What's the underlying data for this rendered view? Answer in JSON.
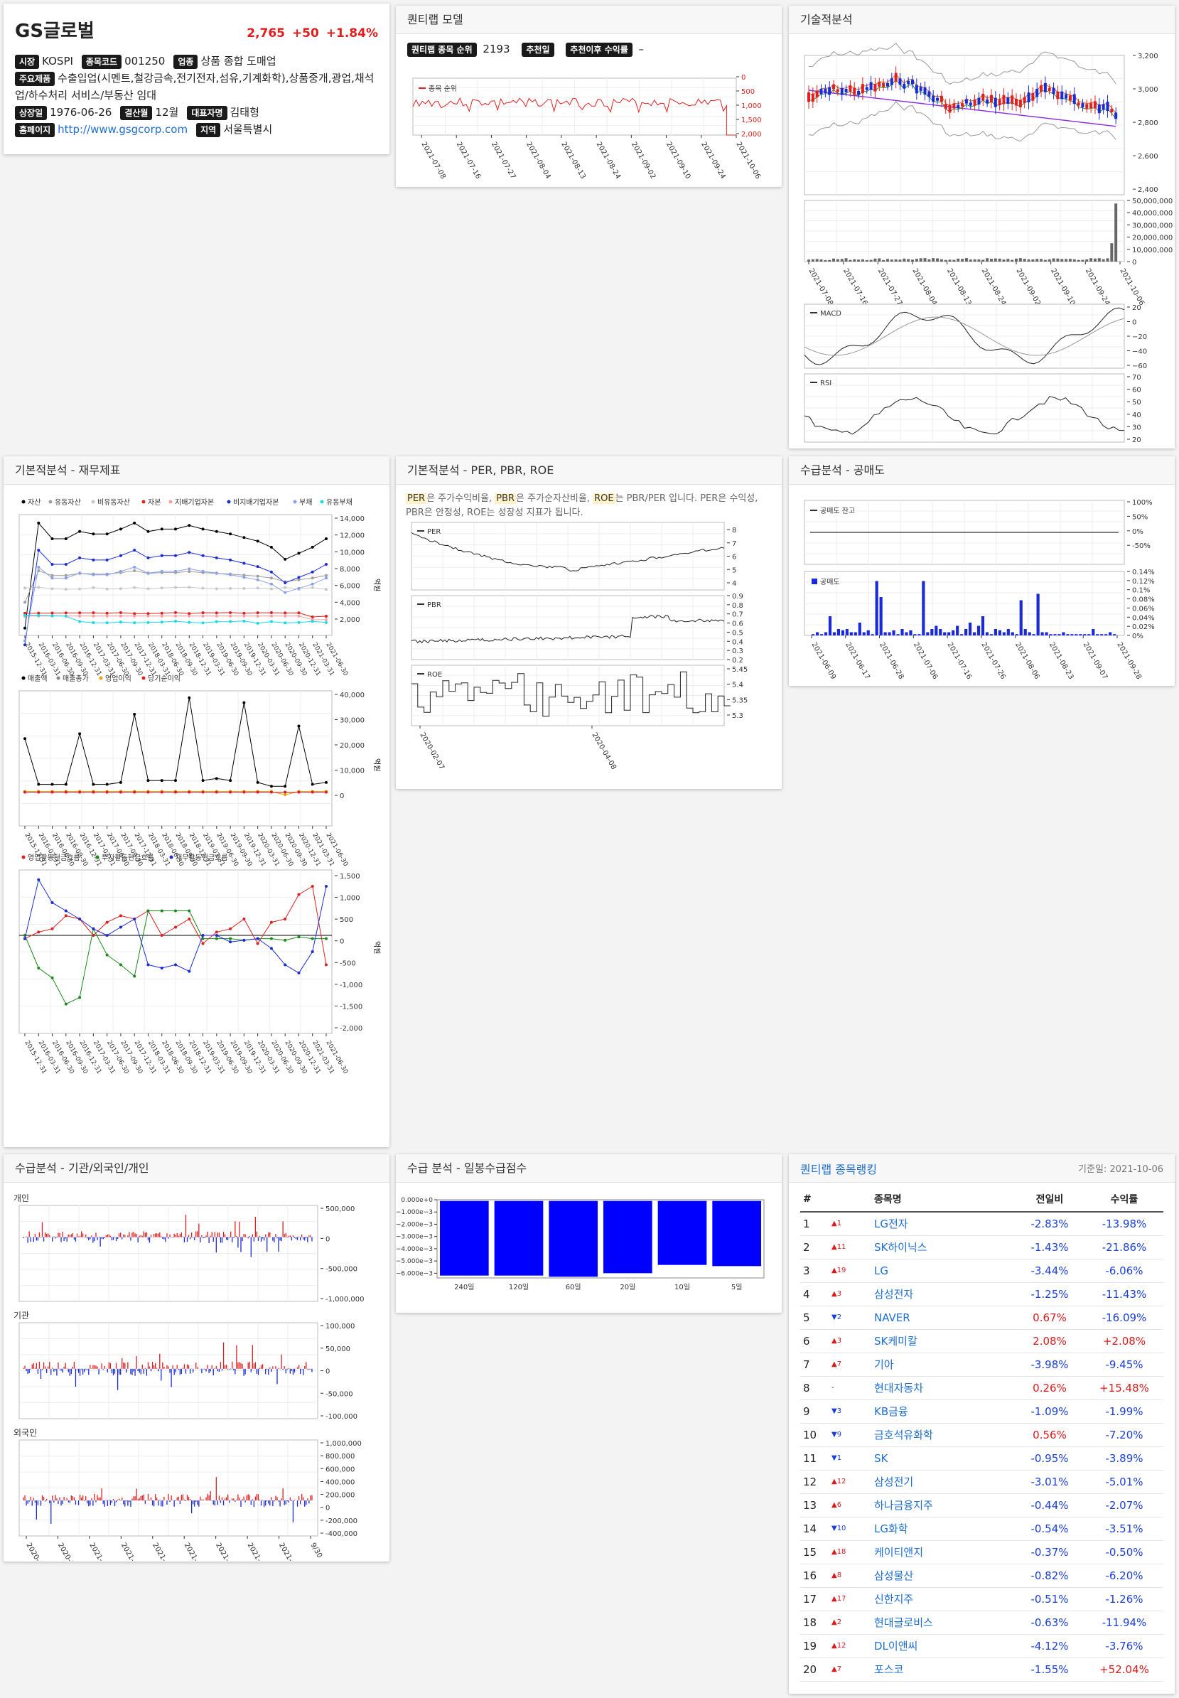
{
  "stock": {
    "name": "GS글로벌",
    "price": "2,765",
    "change": "+50",
    "change_pct": "+1.84%",
    "rows": [
      [
        {
          "label": "시장",
          "value": "KOSPI"
        },
        {
          "label": "종목코드",
          "value": "001250"
        },
        {
          "label": "업종",
          "value": "상품 종합 도매업"
        }
      ],
      [
        {
          "label": "주요제품",
          "value": "수출입업(시멘트,철강금속,전기전자,섬유,기계화학),상품중개,광업,채석업/하수처리 서비스/부동산 임대"
        }
      ],
      [
        {
          "label": "상장일",
          "value": "1976-06-26"
        },
        {
          "label": "결산월",
          "value": "12월"
        },
        {
          "label": "대표자명",
          "value": "김태형"
        }
      ],
      [
        {
          "label": "홈페이지",
          "value": "http://www.gsgcorp.com",
          "link": true
        },
        {
          "label": "지역",
          "value": "서울특별시"
        }
      ]
    ]
  },
  "quantilab": {
    "title": "퀀티랩 모델",
    "rank_label": "퀀티랩 종목 순위",
    "rank_value": "2193",
    "rec_label": "추천일",
    "rec_return_label": "추천이후 수익률",
    "rec_return_value": "–",
    "legend": "종목 순위",
    "yticks": [
      "0",
      "500",
      "1,000",
      "1,500",
      "2,000"
    ],
    "xticks": [
      "2021-07-08",
      "2021-07-16",
      "2021-07-27",
      "2021-08-04",
      "2021-08-13",
      "2021-08-24",
      "2021-09-02",
      "2021-09-10",
      "2021-09-24",
      "2021-10-06"
    ]
  },
  "technical": {
    "title": "기술적분석",
    "price_yticks": [
      "3,200",
      "3,000",
      "2,800",
      "2,600",
      "2,400"
    ],
    "vol_yticks": [
      "50,000,000",
      "40,000,000",
      "30,000,000",
      "20,000,000",
      "10,000,000",
      "0"
    ],
    "xticks": [
      "2021-07-08",
      "2021-07-16",
      "2021-07-27",
      "2021-08-04",
      "2021-08-13",
      "2021-08-24",
      "2021-09-02",
      "2021-09-10",
      "2021-09-24",
      "2021-10-06"
    ],
    "macd_label": "MACD",
    "macd_yticks": [
      "20",
      "0",
      "−20",
      "−40",
      "−60"
    ],
    "rsi_label": "RSI",
    "rsi_yticks": [
      "70",
      "60",
      "50",
      "40",
      "30",
      "20"
    ]
  },
  "fundamental": {
    "title": "기본적분석 - 재무제표",
    "bs_legend": [
      {
        "name": "자산",
        "color": "#000000"
      },
      {
        "name": "유동자산",
        "color": "#9e9e9e"
      },
      {
        "name": "비유동자산",
        "color": "#c8c8c8"
      },
      {
        "name": "자본",
        "color": "#e02020"
      },
      {
        "name": "지배기업자본",
        "color": "#f4a0a0"
      },
      {
        "name": "비지배기업자본",
        "color": "#1a2bd6"
      },
      {
        "name": "부채",
        "color": "#8aa0e8"
      },
      {
        "name": "유동부채",
        "color": "#19d9e6"
      }
    ],
    "bs_yticks": [
      "14,000",
      "12,000",
      "10,000",
      "8,000",
      "6,000",
      "4,000",
      "2,000"
    ],
    "is_legend": [
      {
        "name": "매출액",
        "color": "#000000"
      },
      {
        "name": "매출총가",
        "color": "#888888"
      },
      {
        "name": "영업이익",
        "color": "#f0a000"
      },
      {
        "name": "당기순이익",
        "color": "#e02020"
      }
    ],
    "is_yticks": [
      "40,000",
      "30,000",
      "20,000",
      "10,000",
      "0"
    ],
    "cf_legend": [
      {
        "name": "영업활동현금흐름",
        "color": "#e02020"
      },
      {
        "name": "투자활동현금흐름",
        "color": "#1a8a1a"
      },
      {
        "name": "재무활동현금흐름",
        "color": "#1a2bd6"
      }
    ],
    "cf_yticks": [
      "1,500",
      "1,000",
      "500",
      "0",
      "-500",
      "-1,000",
      "-1,500",
      "-2,000"
    ],
    "unit": "억원",
    "dates": [
      "2015-12-31",
      "2016-03-31",
      "2016-06-30",
      "2016-09-30",
      "2016-12-31",
      "2017-03-31",
      "2017-06-30",
      "2017-09-30",
      "2017-12-31",
      "2018-03-31",
      "2018-06-30",
      "2018-09-30",
      "2018-12-31",
      "2019-03-31",
      "2019-06-30",
      "2019-09-30",
      "2019-12-31",
      "2020-03-31",
      "2020-06-30",
      "2020-09-30",
      "2020-12-31",
      "2021-03-31",
      "2021-06-30"
    ]
  },
  "per": {
    "title": "기본적분석 - PER, PBR, ROE",
    "desc_per": "PER",
    "desc_t1": "은 주가수익비율, ",
    "desc_pbr": "PBR",
    "desc_t2": "은 주가순자산비율, ",
    "desc_roe": "ROE",
    "desc_t3": "는 PBR/PER 입니다. PER은 수익성, PBR은 안정성, ROE는 성장성 지표가 됩니다.",
    "per_label": "PER",
    "per_yticks": [
      "8",
      "7",
      "6",
      "5",
      "4"
    ],
    "pbr_label": "PBR",
    "pbr_yticks": [
      "0.9",
      "0.8",
      "0.7",
      "0.6",
      "0.5",
      "0.4",
      "0.3",
      "0.2"
    ],
    "roe_label": "ROE",
    "roe_yticks": [
      "5.45",
      "5.4",
      "5.35",
      "5.3"
    ],
    "xticks": [
      "2020-02-07",
      "2020-04-08"
    ]
  },
  "short": {
    "title": "수급분석 - 공매도",
    "balance_label": "공매도 잔고",
    "balance_yticks": [
      "100%",
      "50%",
      "0%",
      "-50%"
    ],
    "vol_label": "공매도",
    "vol_yticks": [
      "0.14%",
      "0.12%",
      "0.1%",
      "0.08%",
      "0.06%",
      "0.04%",
      "0.02%",
      "0%"
    ],
    "xticks": [
      "2021-06-09",
      "2021-06-17",
      "2021-06-28",
      "2021-07-06",
      "2021-07-16",
      "2021-07-26",
      "2021-08-06",
      "2021-08-23",
      "2021-09-07",
      "2021-09-28"
    ]
  },
  "investor": {
    "title": "수급분석 - 기관/외국인/개인",
    "individual": "개인",
    "individual_yticks": [
      "500,000",
      "0",
      "-500,000",
      "-1,000,000"
    ],
    "institution": "기관",
    "institution_yticks": [
      "100,000",
      "50,000",
      "0",
      "-50,000",
      "-100,000"
    ],
    "foreign": "외국인",
    "foreign_yticks": [
      "1,000,000",
      "800,000",
      "600,000",
      "400,000",
      "200,000",
      "0",
      "-200,000",
      "-400,000"
    ],
    "xticks": [
      "2020-10-20",
      "2020-11-25",
      "2021-01-06",
      "2021-02-15",
      "2021-03-25",
      "2021-04-30",
      "2021-06-10",
      "2021-07-16",
      "2021-08-25",
      "9/30"
    ]
  },
  "daily": {
    "title": "수급 분석 - 일봉수급점수",
    "yticks": [
      "0.000e+0",
      "−1.000e−3",
      "−2.000e−3",
      "−3.000e−3",
      "−4.000e−3",
      "−5.000e−3",
      "−6.000e−3"
    ]
  },
  "chart_data": [
    {
      "type": "bar",
      "categories": [
        "240일",
        "120일",
        "60일",
        "20일",
        "10일",
        "5일"
      ],
      "values": [
        -0.0063,
        -0.0063,
        -0.0064,
        -0.0061,
        -0.0054,
        -0.0055
      ],
      "ylim": [
        -0.0065,
        0.0001
      ]
    }
  ],
  "ranking": {
    "title": "퀀티랩 종목랭킹",
    "base_date": "기준일: 2021-10-06",
    "headers": [
      "#",
      "종목명",
      "전일비",
      "수익률"
    ],
    "rows": [
      {
        "no": "1",
        "dir": "up",
        "mv": "1",
        "name": "LG전자",
        "day": "-2.83%",
        "ret": "-13.98%"
      },
      {
        "no": "2",
        "dir": "up",
        "mv": "11",
        "name": "SK하이닉스",
        "day": "-1.43%",
        "ret": "-21.86%"
      },
      {
        "no": "3",
        "dir": "up",
        "mv": "19",
        "name": "LG",
        "day": "-3.44%",
        "ret": "-6.06%"
      },
      {
        "no": "4",
        "dir": "up",
        "mv": "3",
        "name": "삼성전자",
        "day": "-1.25%",
        "ret": "-11.43%"
      },
      {
        "no": "5",
        "dir": "dn",
        "mv": "2",
        "name": "NAVER",
        "day": "0.67%",
        "ret": "-16.09%"
      },
      {
        "no": "6",
        "dir": "up",
        "mv": "3",
        "name": "SK케미칼",
        "day": "2.08%",
        "ret": "+2.08%"
      },
      {
        "no": "7",
        "dir": "up",
        "mv": "7",
        "name": "기아",
        "day": "-3.98%",
        "ret": "-9.45%"
      },
      {
        "no": "8",
        "dir": "none",
        "mv": "-",
        "name": "현대자동차",
        "day": "0.26%",
        "ret": "+15.48%"
      },
      {
        "no": "9",
        "dir": "dn",
        "mv": "3",
        "name": "KB금융",
        "day": "-1.09%",
        "ret": "-1.99%"
      },
      {
        "no": "10",
        "dir": "dn",
        "mv": "9",
        "name": "금호석유화학",
        "day": "0.56%",
        "ret": "-7.20%"
      },
      {
        "no": "11",
        "dir": "dn",
        "mv": "1",
        "name": "SK",
        "day": "-0.95%",
        "ret": "-3.89%"
      },
      {
        "no": "12",
        "dir": "up",
        "mv": "12",
        "name": "삼성전기",
        "day": "-3.01%",
        "ret": "-5.01%"
      },
      {
        "no": "13",
        "dir": "up",
        "mv": "6",
        "name": "하나금융지주",
        "day": "-0.44%",
        "ret": "-2.07%"
      },
      {
        "no": "14",
        "dir": "dn",
        "mv": "10",
        "name": "LG화학",
        "day": "-0.54%",
        "ret": "-3.51%"
      },
      {
        "no": "15",
        "dir": "up",
        "mv": "18",
        "name": "케이티앤지",
        "day": "-0.37%",
        "ret": "-0.50%"
      },
      {
        "no": "16",
        "dir": "up",
        "mv": "8",
        "name": "삼성물산",
        "day": "-0.82%",
        "ret": "-6.20%"
      },
      {
        "no": "17",
        "dir": "up",
        "mv": "17",
        "name": "신한지주",
        "day": "-0.51%",
        "ret": "-1.26%"
      },
      {
        "no": "18",
        "dir": "up",
        "mv": "2",
        "name": "현대글로비스",
        "day": "-0.63%",
        "ret": "-11.94%"
      },
      {
        "no": "19",
        "dir": "up",
        "mv": "12",
        "name": "DL이앤씨",
        "day": "-4.12%",
        "ret": "-3.76%"
      },
      {
        "no": "20",
        "dir": "up",
        "mv": "7",
        "name": "포스코",
        "day": "-1.55%",
        "ret": "+52.04%"
      }
    ]
  }
}
